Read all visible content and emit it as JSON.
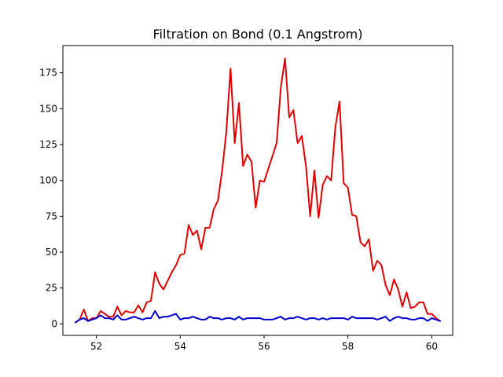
{
  "chart_data": {
    "type": "line",
    "title": "Filtration on Bond (0.1 Angstrom)",
    "xlabel": "",
    "ylabel": "",
    "xlim": [
      51.2,
      60.5
    ],
    "ylim": [
      -8,
      194
    ],
    "x_ticks": [
      52,
      54,
      56,
      58,
      60
    ],
    "y_ticks": [
      0,
      25,
      50,
      75,
      100,
      125,
      150,
      175
    ],
    "grid": false,
    "legend": "none",
    "x": [
      51.5,
      51.6,
      51.7,
      51.8,
      51.9,
      52.0,
      52.1,
      52.2,
      52.3,
      52.4,
      52.5,
      52.6,
      52.7,
      52.8,
      52.9,
      53.0,
      53.1,
      53.2,
      53.3,
      53.4,
      53.5,
      53.6,
      53.7,
      53.8,
      53.9,
      54.0,
      54.1,
      54.2,
      54.3,
      54.4,
      54.5,
      54.6,
      54.7,
      54.8,
      54.9,
      55.0,
      55.1,
      55.2,
      55.3,
      55.4,
      55.5,
      55.6,
      55.7,
      55.8,
      55.9,
      56.0,
      56.1,
      56.2,
      56.3,
      56.4,
      56.5,
      56.6,
      56.7,
      56.8,
      56.9,
      57.0,
      57.1,
      57.2,
      57.3,
      57.4,
      57.5,
      57.6,
      57.7,
      57.8,
      57.9,
      58.0,
      58.1,
      58.2,
      58.3,
      58.4,
      58.5,
      58.6,
      58.7,
      58.8,
      58.9,
      59.0,
      59.1,
      59.2,
      59.3,
      59.4,
      59.5,
      59.6,
      59.7,
      59.8,
      59.9,
      60.0,
      60.1,
      60.2
    ],
    "series": [
      {
        "color": "#dd0000",
        "values": [
          1,
          3,
          10,
          2,
          4,
          4,
          9,
          7,
          5,
          5,
          12,
          6,
          9,
          8,
          8,
          13,
          8,
          15,
          16,
          36,
          28,
          24,
          30,
          36,
          41,
          48,
          49,
          69,
          62,
          65,
          52,
          67,
          67,
          80,
          86,
          107,
          134,
          178,
          126,
          154,
          110,
          118,
          113,
          81,
          100,
          99,
          108,
          117,
          126,
          165,
          185,
          144,
          149,
          126,
          131,
          110,
          75,
          107,
          74,
          97,
          103,
          100,
          137,
          155,
          98,
          95,
          76,
          75,
          57,
          54,
          59,
          37,
          44,
          41,
          27,
          20,
          31,
          24,
          12,
          22,
          11,
          12,
          15,
          15,
          7,
          7,
          4,
          2
        ]
      },
      {
        "color": "#0000cc",
        "values": [
          1,
          3,
          4,
          2,
          3,
          4,
          6,
          4,
          4,
          3,
          6,
          3,
          3,
          4,
          5,
          4,
          3,
          4,
          4,
          9,
          4,
          5,
          5,
          6,
          7,
          3,
          4,
          4,
          5,
          4,
          3,
          3,
          5,
          4,
          4,
          3,
          4,
          4,
          3,
          5,
          3,
          4,
          4,
          4,
          4,
          3,
          3,
          3,
          4,
          5,
          3,
          4,
          4,
          5,
          4,
          3,
          4,
          4,
          3,
          4,
          3,
          4,
          4,
          4,
          4,
          3,
          5,
          4,
          4,
          4,
          4,
          4,
          3,
          4,
          5,
          2,
          4,
          5,
          4,
          4,
          3,
          3,
          4,
          4,
          2,
          4,
          3,
          2
        ]
      }
    ]
  }
}
